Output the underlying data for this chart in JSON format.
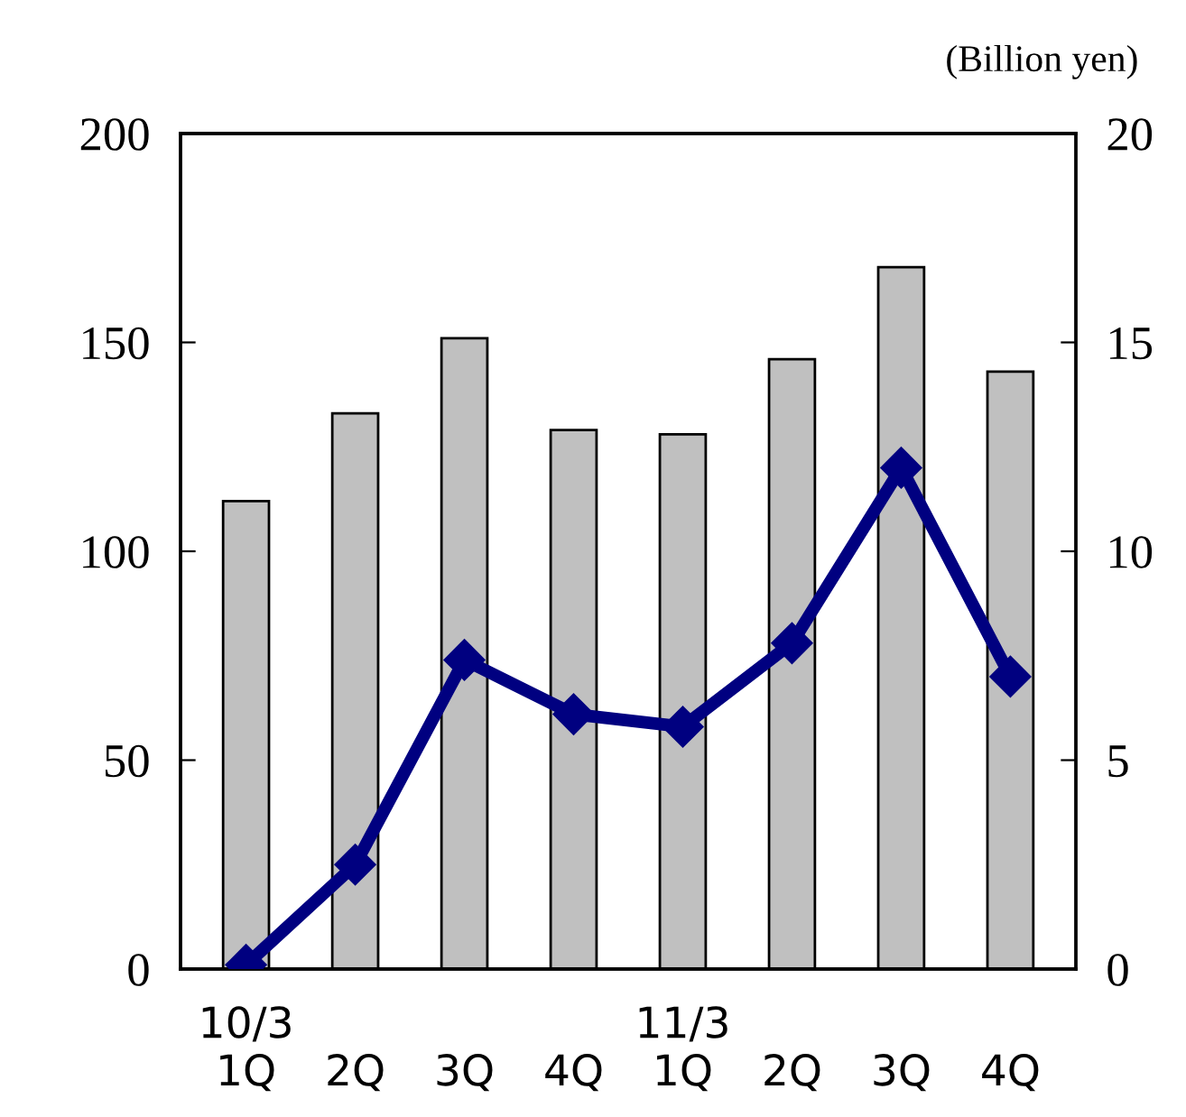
{
  "chart_data": {
    "type": "bar",
    "y2label": "(Billion yen)",
    "categories": [
      "10/3\n1Q",
      "2Q",
      "3Q",
      "4Q",
      "11/3\n1Q",
      "2Q",
      "3Q",
      "4Q"
    ],
    "series": [
      {
        "color": "#c0c0c0",
        "values": [
          112,
          133,
          151,
          129,
          128,
          146,
          168,
          143
        ]
      },
      {
        "type": "line",
        "axis": "y2",
        "color": "#000080",
        "marker": "diamond",
        "line_style": "solid",
        "values": [
          0.1,
          2.5,
          7.4,
          6.1,
          5.8,
          7.8,
          12.0,
          7.0
        ]
      }
    ],
    "ylim": [
      0,
      200
    ],
    "yticks": [
      0,
      50,
      100,
      150,
      200
    ],
    "y2lim": [
      0,
      20
    ],
    "y2ticks": [
      0,
      5,
      10,
      15,
      20
    ],
    "grid": false,
    "legend": false
  }
}
